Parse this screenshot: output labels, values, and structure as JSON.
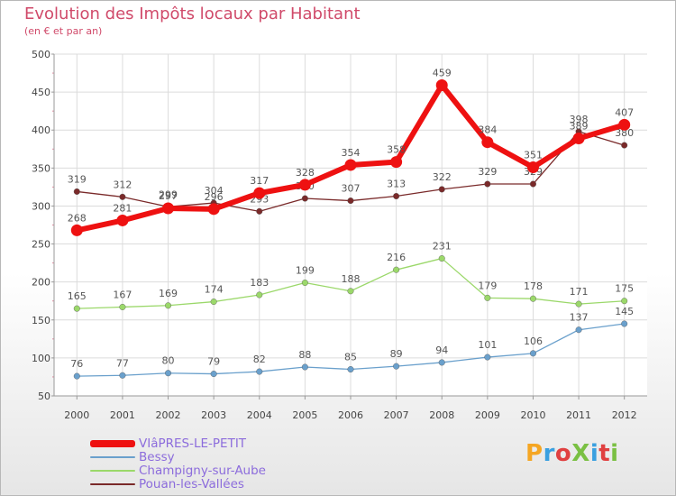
{
  "title": "Evolution des Impôts locaux par Habitant",
  "subtitle": "(en € et par an)",
  "logo": {
    "text": "ProXiti",
    "colors": [
      "#f5a623",
      "#3aa0e0",
      "#e04040",
      "#7ac043",
      "#3aa0e0",
      "#e04040",
      "#7ac043"
    ]
  },
  "chart_data": {
    "type": "line",
    "title": "Evolution des Impôts locaux par Habitant",
    "subtitle": "(en € et par an)",
    "xlabel": "",
    "ylabel": "",
    "x": [
      "2000",
      "2001",
      "2002",
      "2003",
      "2004",
      "2005",
      "2006",
      "2007",
      "2008",
      "2009",
      "2010",
      "2011",
      "2012"
    ],
    "ylim": [
      50,
      500
    ],
    "yticks": [
      "50",
      "100",
      "150",
      "200",
      "250",
      "300",
      "350",
      "400",
      "450",
      "500"
    ],
    "grid": true,
    "legend_position": "bottom-left",
    "series": [
      {
        "name": "Pouan-les-Vallées",
        "color": "#7a2a2a",
        "values": [
          319,
          312,
          299,
          304,
          293,
          310,
          307,
          313,
          322,
          329,
          329,
          398,
          380
        ]
      },
      {
        "name": "Champigny-sur-Aube",
        "color": "#9bd86a",
        "values": [
          165,
          167,
          169,
          174,
          183,
          199,
          188,
          216,
          231,
          179,
          178,
          171,
          175
        ]
      },
      {
        "name": "Bessy",
        "color": "#6aa0cc",
        "values": [
          76,
          77,
          80,
          79,
          82,
          88,
          85,
          89,
          94,
          101,
          106,
          137,
          145
        ]
      },
      {
        "name": "VIâPRES-LE-PETIT",
        "color": "#ee1111",
        "values": [
          268,
          281,
          297,
          296,
          317,
          328,
          354,
          358,
          459,
          384,
          351,
          389,
          407
        ]
      }
    ],
    "legend": [
      "VIâPRES-LE-PETIT",
      "Bessy",
      "Champigny-sur-Aube",
      "Pouan-les-Vallées"
    ]
  }
}
